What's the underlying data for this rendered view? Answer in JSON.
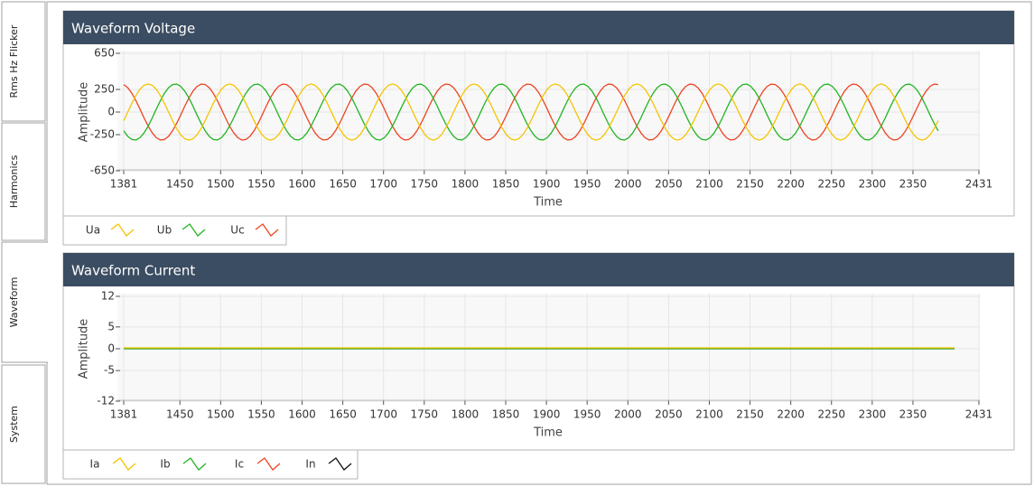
{
  "tabs": [
    "Rms Hz Flicker",
    "Harmonics",
    "Waveform",
    "System"
  ],
  "selected_tab": 2,
  "chart_data": [
    {
      "type": "line",
      "title": "Waveform Voltage",
      "xlabel": "Time",
      "ylabel": "Amplitude",
      "xlim": [
        1381,
        2431
      ],
      "xticks": [
        1381,
        1450,
        1500,
        1550,
        1600,
        1650,
        1700,
        1750,
        1800,
        1850,
        1900,
        1950,
        2000,
        2050,
        2100,
        2150,
        2200,
        2250,
        2300,
        2350,
        2431
      ],
      "ylim": [
        -650,
        650
      ],
      "yticks": [
        650,
        250,
        0,
        -250,
        -650
      ],
      "grid": true,
      "x": [
        1381,
        1386,
        1391,
        1396,
        1401,
        1406,
        1411,
        1416,
        1421,
        1426,
        1431,
        1436,
        1441,
        1446,
        1451,
        1456,
        1461,
        1466,
        1471,
        1476,
        1481,
        1486,
        1491,
        1496,
        1501,
        1506,
        1511,
        1516,
        1521,
        1526,
        1531,
        1536,
        1541,
        1546,
        1551,
        1556,
        1561,
        1566,
        1571,
        1576,
        1581,
        1586,
        1591,
        1596,
        1601,
        1606,
        1611,
        1616,
        1621,
        1626,
        1631,
        1636,
        1641,
        1646,
        1651,
        1656,
        1661,
        1666,
        1671,
        1676,
        1681,
        1686,
        1691,
        1696,
        1701,
        1706,
        1711,
        1716,
        1721,
        1726,
        1731,
        1736,
        1741,
        1746,
        1751,
        1756,
        1761,
        1766,
        1771,
        1776,
        1781,
        1786,
        1791,
        1796,
        1801,
        1806,
        1811,
        1816,
        1821,
        1826,
        1831,
        1836,
        1841,
        1846,
        1851,
        1856,
        1861,
        1866,
        1871,
        1876,
        1881,
        1886,
        1891,
        1896,
        1901,
        1906,
        1911,
        1916,
        1921,
        1926,
        1931,
        1936,
        1941,
        1946,
        1951,
        1956,
        1961,
        1966,
        1971,
        1976,
        1981,
        1986,
        1991,
        1996,
        2001,
        2006,
        2011,
        2016,
        2021,
        2026,
        2031,
        2036,
        2041,
        2046,
        2051,
        2056,
        2061,
        2066,
        2071,
        2076,
        2081,
        2086,
        2091,
        2096,
        2101,
        2106,
        2111,
        2116,
        2121,
        2126,
        2131,
        2136,
        2141,
        2146,
        2151,
        2156,
        2161,
        2166,
        2171,
        2176,
        2181,
        2186,
        2191,
        2196,
        2201,
        2206,
        2211,
        2216,
        2221,
        2226,
        2231,
        2236,
        2241,
        2246,
        2251,
        2256,
        2261,
        2266,
        2271,
        2276,
        2281,
        2286,
        2291,
        2296,
        2301,
        2306,
        2311,
        2316,
        2321,
        2326,
        2331,
        2336,
        2341,
        2346,
        2351,
        2356,
        2361,
        2366,
        2371,
        2376,
        2381
      ],
      "series": [
        {
          "name": "Ua",
          "color": "#f5c400",
          "values": [
            -96,
            0,
            96,
            183,
            252,
            296,
            311,
            296,
            252,
            183,
            96,
            0,
            -96,
            -183,
            -252,
            -296,
            -311,
            -296,
            -252,
            -183,
            -96,
            0,
            96,
            183,
            252,
            296,
            311,
            296,
            252,
            183,
            96,
            0,
            -96,
            -183,
            -252,
            -296,
            -311,
            -296,
            -252,
            -183,
            -96,
            0,
            96,
            183,
            252,
            296,
            311,
            296,
            252,
            183,
            96,
            0,
            -96,
            -183,
            -252,
            -296,
            -311,
            -296,
            -252,
            -183,
            -96,
            0,
            96,
            183,
            252,
            296,
            311,
            296,
            252,
            183,
            96,
            0,
            -96,
            -183,
            -252,
            -296,
            -311,
            -296,
            -252,
            -183,
            -96,
            0,
            96,
            183,
            252,
            296,
            311,
            296,
            252,
            183,
            96,
            0,
            -96,
            -183,
            -252,
            -296,
            -311,
            -296,
            -252,
            -183,
            -96,
            0,
            96,
            183,
            252,
            296,
            311,
            296,
            252,
            183,
            96,
            0,
            -96,
            -183,
            -252,
            -296,
            -311,
            -296,
            -252,
            -183,
            -96,
            0,
            96,
            183,
            252,
            296,
            311,
            296,
            252,
            183,
            96,
            0,
            -96,
            -183,
            -252,
            -296,
            -311,
            -296,
            -252,
            -183,
            -96,
            0,
            96,
            183,
            252,
            296,
            311,
            296,
            252,
            183,
            96,
            0,
            -96,
            -183,
            -252,
            -296,
            -311,
            -296,
            -252,
            -183,
            -96,
            0,
            96,
            183,
            252,
            296,
            311,
            296,
            252,
            183,
            96,
            0,
            -96,
            -183,
            -252,
            -296,
            -311,
            -296,
            -252,
            -183,
            -96,
            0,
            96,
            183,
            252,
            296,
            311,
            296,
            252,
            183,
            96,
            0,
            -96,
            -183,
            -252,
            -296,
            -311,
            -296,
            -252,
            -183,
            -96
          ]
        },
        {
          "name": "Ub",
          "color": "#22b522",
          "values": [
            -208,
            -269,
            -304,
            -309,
            -284,
            -231,
            -156,
            -65,
            33,
            126,
            208,
            269,
            304,
            309,
            284,
            231,
            156,
            65,
            -33,
            -126,
            -208,
            -269,
            -304,
            -309,
            -284,
            -231,
            -156,
            -65,
            33,
            126,
            208,
            269,
            304,
            309,
            284,
            231,
            156,
            65,
            -33,
            -126,
            -208,
            -269,
            -304,
            -309,
            -284,
            -231,
            -156,
            -65,
            33,
            126,
            208,
            269,
            304,
            309,
            284,
            231,
            156,
            65,
            -33,
            -126,
            -208,
            -269,
            -304,
            -309,
            -284,
            -231,
            -156,
            -65,
            33,
            126,
            208,
            269,
            304,
            309,
            284,
            231,
            156,
            65,
            -33,
            -126,
            -208,
            -269,
            -304,
            -309,
            -284,
            -231,
            -156,
            -65,
            33,
            126,
            208,
            269,
            304,
            309,
            284,
            231,
            156,
            65,
            -33,
            -126,
            -208,
            -269,
            -304,
            -309,
            -284,
            -231,
            -156,
            -65,
            33,
            126,
            208,
            269,
            304,
            309,
            284,
            231,
            156,
            65,
            -33,
            -126,
            -208,
            -269,
            -304,
            -309,
            -284,
            -231,
            -156,
            -65,
            33,
            126,
            208,
            269,
            304,
            309,
            284,
            231,
            156,
            65,
            -33,
            -126,
            -208,
            -269,
            -304,
            -309,
            -284,
            -231,
            -156,
            -65,
            33,
            126,
            208,
            269,
            304,
            309,
            284,
            231,
            156,
            65,
            -33,
            -126,
            -208,
            -269,
            -304,
            -309,
            -284,
            -231,
            -156,
            -65,
            33,
            126,
            208,
            269,
            304,
            309,
            284,
            231,
            156,
            65,
            -33,
            -126,
            -208,
            -269,
            -304,
            -309,
            -284,
            -231,
            -156,
            -65,
            33,
            126,
            208,
            269,
            304,
            309,
            284,
            231,
            156,
            65,
            -33,
            -126,
            -208
          ]
        },
        {
          "name": "Uc",
          "color": "#ee4422",
          "values": [
            304,
            269,
            208,
            126,
            33,
            -65,
            -156,
            -231,
            -284,
            -309,
            -304,
            -269,
            -208,
            -126,
            -33,
            65,
            156,
            231,
            284,
            309,
            304,
            269,
            208,
            126,
            33,
            -65,
            -156,
            -231,
            -284,
            -309,
            -304,
            -269,
            -208,
            -126,
            -33,
            65,
            156,
            231,
            284,
            309,
            304,
            269,
            208,
            126,
            33,
            -65,
            -156,
            -231,
            -284,
            -309,
            -304,
            -269,
            -208,
            -126,
            -33,
            65,
            156,
            231,
            284,
            309,
            304,
            269,
            208,
            126,
            33,
            -65,
            -156,
            -231,
            -284,
            -309,
            -304,
            -269,
            -208,
            -126,
            -33,
            65,
            156,
            231,
            284,
            309,
            304,
            269,
            208,
            126,
            33,
            -65,
            -156,
            -231,
            -284,
            -309,
            -304,
            -269,
            -208,
            -126,
            -33,
            65,
            156,
            231,
            284,
            309,
            304,
            269,
            208,
            126,
            33,
            -65,
            -156,
            -231,
            -284,
            -309,
            -304,
            -269,
            -208,
            -126,
            -33,
            65,
            156,
            231,
            284,
            309,
            304,
            269,
            208,
            126,
            33,
            -65,
            -156,
            -231,
            -284,
            -309,
            -304,
            -269,
            -208,
            -126,
            -33,
            65,
            156,
            231,
            284,
            309,
            304,
            269,
            208,
            126,
            33,
            -65,
            -156,
            -231,
            -284,
            -309,
            -304,
            -269,
            -208,
            -126,
            -33,
            65,
            156,
            231,
            284,
            309,
            304,
            269,
            208,
            126,
            33,
            -65,
            -156,
            -231,
            -284,
            -309,
            -304,
            -269,
            -208,
            -126,
            -33,
            65,
            156,
            231,
            284,
            309,
            304,
            269,
            208,
            126,
            33,
            -65,
            -156,
            -231,
            -284,
            -309,
            -304,
            -269,
            -208,
            -126,
            -33,
            65,
            156,
            231,
            284,
            309,
            304
          ]
        }
      ]
    },
    {
      "type": "line",
      "title": "Waveform Current",
      "xlabel": "Time",
      "ylabel": "Amplitude",
      "xlim": [
        1381,
        2431
      ],
      "xticks": [
        1381,
        1450,
        1500,
        1550,
        1600,
        1650,
        1700,
        1750,
        1800,
        1850,
        1900,
        1950,
        2000,
        2050,
        2100,
        2150,
        2200,
        2250,
        2300,
        2350,
        2431
      ],
      "ylim": [
        -12,
        12
      ],
      "yticks": [
        12,
        5,
        0,
        -5,
        -12
      ],
      "grid": true,
      "x": [
        1381,
        1441,
        1501,
        1561,
        1621,
        1681,
        1741,
        1801,
        1861,
        1921,
        1981,
        2041,
        2101,
        2161,
        2221,
        2281,
        2341,
        2401
      ],
      "series": [
        {
          "name": "Ia",
          "color": "#f5c400",
          "values": [
            0.2,
            0.2,
            0.2,
            0.2,
            0.2,
            0.2,
            0.2,
            0.2,
            0.2,
            0.2,
            0.2,
            0.2,
            0.2,
            0.2,
            0.2,
            0.2,
            0.2,
            0.2
          ]
        },
        {
          "name": "Ib",
          "color": "#22b522",
          "values": [
            0.05,
            0.05,
            0.05,
            0.05,
            0.05,
            0.05,
            0.05,
            0.05,
            0.05,
            0.05,
            0.05,
            0.05,
            0.05,
            0.05,
            0.05,
            0.05,
            0.05,
            0.05
          ]
        },
        {
          "name": "Ic",
          "color": "#ee4422",
          "values": [
            0.1,
            0.1,
            0.1,
            0.1,
            0.1,
            0.1,
            0.1,
            0.1,
            0.1,
            0.1,
            0.1,
            0.1,
            0.1,
            0.1,
            0.1,
            0.1,
            0.1,
            0.1
          ]
        },
        {
          "name": "In",
          "color": "#111111",
          "values": [
            0,
            0,
            0,
            0,
            0,
            0,
            0,
            0,
            0,
            0,
            0,
            0,
            0,
            0,
            0,
            0,
            0,
            0
          ]
        }
      ]
    }
  ]
}
